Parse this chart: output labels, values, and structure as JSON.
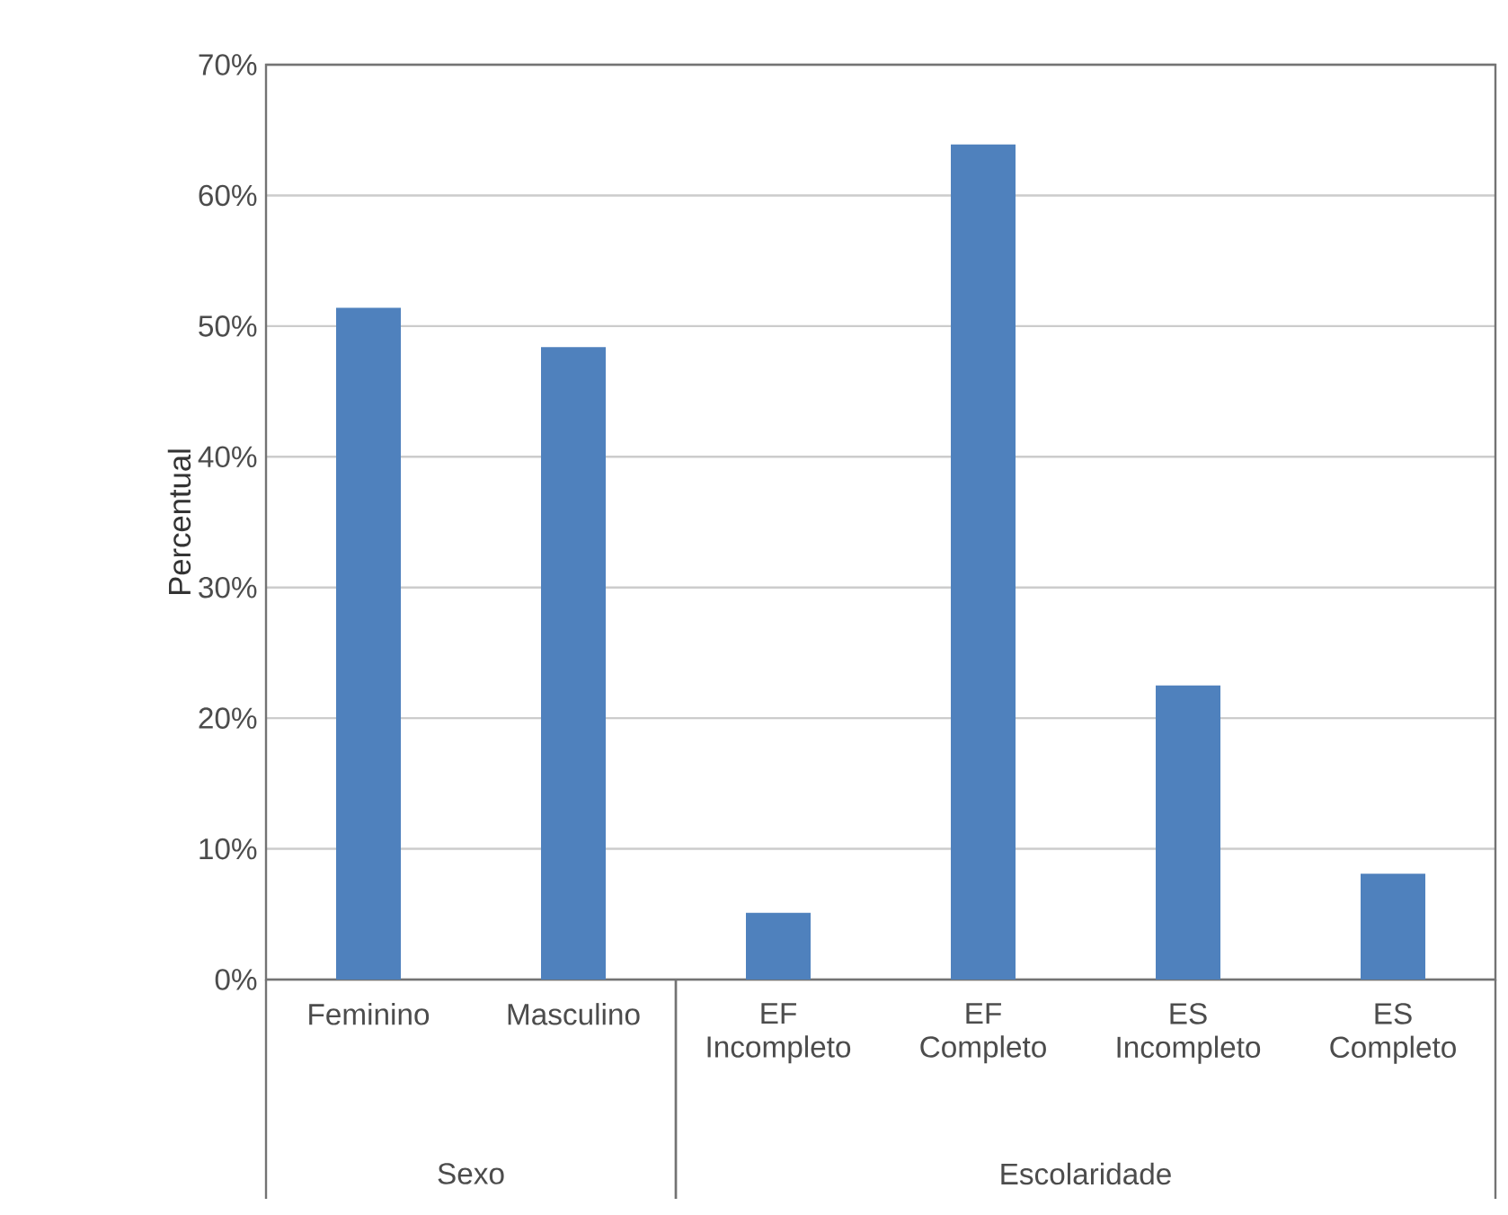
{
  "chart_data": {
    "type": "bar",
    "ylabel": "Percentual",
    "categories": [
      "Feminino",
      "Masculino",
      "EF Incompleto",
      "EF Completo",
      "ES Incompleto",
      "ES Completo"
    ],
    "values": [
      51.4,
      48.4,
      5.1,
      63.9,
      22.5,
      8.1
    ],
    "color": "#4f81bd",
    "ylim": [
      0,
      70
    ],
    "yticks": [
      {
        "value": 0,
        "label": "0%"
      },
      {
        "value": 10,
        "label": "10%"
      },
      {
        "value": 20,
        "label": "20%"
      },
      {
        "value": 30,
        "label": "30%"
      },
      {
        "value": 40,
        "label": "40%"
      },
      {
        "value": 50,
        "label": "50%"
      },
      {
        "value": 60,
        "label": "60%"
      },
      {
        "value": 70,
        "label": "70%"
      }
    ],
    "grid": "y",
    "annotations": [
      "Sexo",
      "Escolaridade"
    ]
  }
}
